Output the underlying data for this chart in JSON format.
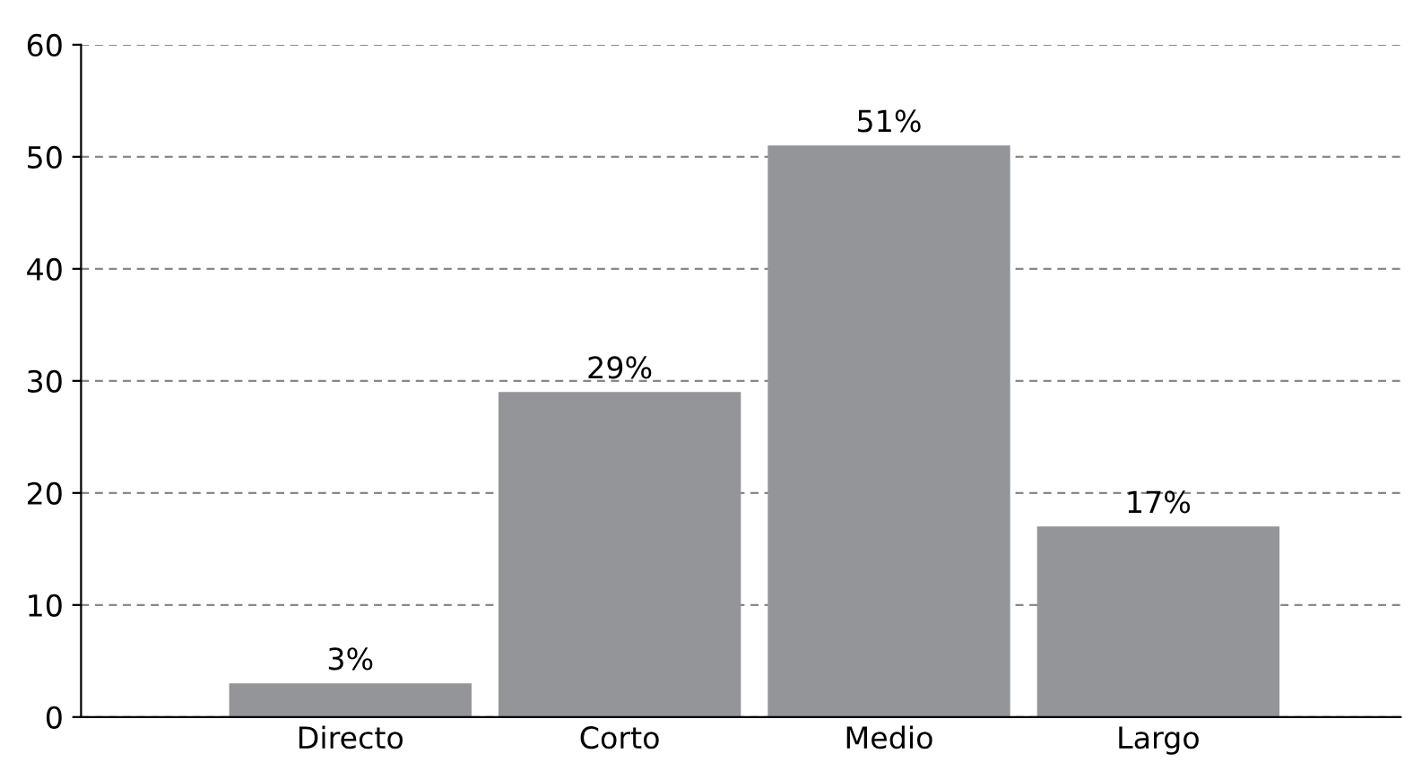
{
  "chart_data": {
    "type": "bar",
    "categories": [
      "Directo",
      "Corto",
      "Medio",
      "Largo"
    ],
    "values": [
      3,
      29,
      51,
      17
    ],
    "value_labels": [
      "3%",
      "29%",
      "51%",
      "17%"
    ],
    "color": "#939598",
    "ylim": [
      0,
      60
    ],
    "yticks": [
      0,
      10,
      20,
      30,
      40,
      50,
      60
    ],
    "grid": "y"
  }
}
